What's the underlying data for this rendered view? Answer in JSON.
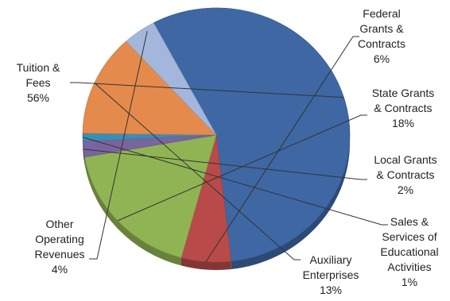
{
  "chart_data": {
    "type": "pie",
    "title": "",
    "slices": [
      {
        "id": "tuition",
        "lines": [
          "Tuition &",
          "Fees"
        ],
        "pct_text": "56%",
        "value": 56,
        "color": "#3e67a4"
      },
      {
        "id": "federal",
        "lines": [
          "Federal",
          "Grants &",
          "Contracts"
        ],
        "pct_text": "6%",
        "value": 6,
        "color": "#b84b49"
      },
      {
        "id": "state",
        "lines": [
          "State Grants",
          "& Contracts"
        ],
        "pct_text": "18%",
        "value": 18,
        "color": "#90b454"
      },
      {
        "id": "local",
        "lines": [
          "Local Grants",
          "& Contracts"
        ],
        "pct_text": "2%",
        "value": 2,
        "color": "#7a64a0"
      },
      {
        "id": "sales",
        "lines": [
          "Sales &",
          "Services of",
          "Educational",
          "Activities"
        ],
        "pct_text": "1%",
        "value": 1,
        "color": "#3b8eb3"
      },
      {
        "id": "auxiliary",
        "lines": [
          "Auxiliary",
          "Enterprises"
        ],
        "pct_text": "13%",
        "value": 13,
        "color": "#e48a4c"
      },
      {
        "id": "other",
        "lines": [
          "Other",
          "Operating",
          "Revenues"
        ],
        "pct_text": "4%",
        "value": 4,
        "color": "#a3b7dc"
      }
    ]
  }
}
